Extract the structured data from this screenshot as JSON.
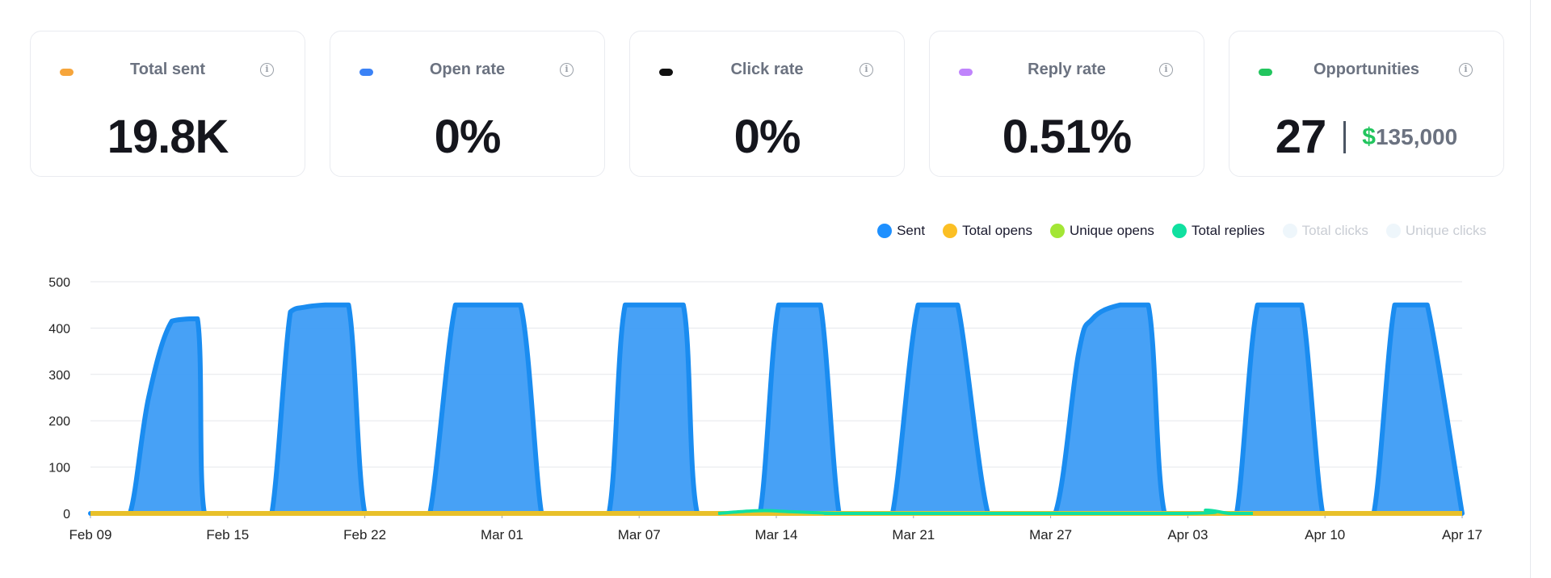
{
  "cards": [
    {
      "label": "Total sent",
      "value": "19.8K",
      "color": "#f6a53b"
    },
    {
      "label": "Open rate",
      "value": "0%",
      "color": "#3b82f6"
    },
    {
      "label": "Click rate",
      "value": "0%",
      "color": "#111111"
    },
    {
      "label": "Reply rate",
      "value": "0.51%",
      "color": "#c084fc"
    },
    {
      "label": "Opportunities",
      "value": "27",
      "money_symbol": "$",
      "money_amount": "135,000",
      "color": "#22c55e"
    }
  ],
  "chart_data": {
    "type": "area",
    "legend_position": "top-right",
    "grid": true,
    "ylim": [
      0,
      500
    ],
    "yticks": [
      "0",
      "100",
      "200",
      "300",
      "400",
      "500"
    ],
    "xticks": [
      "Feb 09",
      "Feb 15",
      "Feb 22",
      "Mar 01",
      "Mar 07",
      "Mar 14",
      "Mar 21",
      "Mar 27",
      "Apr 03",
      "Apr 10",
      "Apr 17"
    ],
    "legend": [
      {
        "name": "Sent",
        "color": "#1e90ff",
        "active": true
      },
      {
        "name": "Total opens",
        "color": "#fbbf24",
        "active": true
      },
      {
        "name": "Unique opens",
        "color": "#a3e635",
        "active": true
      },
      {
        "name": "Total replies",
        "color": "#10e0a0",
        "active": true
      },
      {
        "name": "Total clicks",
        "color": "#eef6fb",
        "active": false
      },
      {
        "name": "Unique clicks",
        "color": "#eef6fb",
        "active": false
      }
    ],
    "series": [
      {
        "name": "Sent",
        "color": "#1e90ff",
        "x": [
          0,
          0.9,
          1.7,
          2.5,
          3.5,
          4.6,
          4.9,
          6.1,
          7.1,
          7.8,
          8.6,
          9.2,
          10.1,
          11.1,
          11.8,
          12.9,
          13.9,
          14.6,
          15.7,
          16.6,
          17.2,
          18.5,
          19.4,
          20,
          21.2,
          22.3,
          23,
          24.2,
          25.5,
          26.1,
          27.6,
          28,
          28.8,
          29.6,
          30.6,
          31.4,
          32.2,
          32.9,
          33.8,
          34.5,
          35.6,
          36.6,
          37.3,
          38.6,
          39.6,
          40.2,
          41.5,
          42.5,
          43.1,
          44.3,
          45.5,
          46.2,
          47.6,
          48.6,
          49.3,
          50.2,
          51.3,
          52.1,
          53,
          53.7,
          54.4,
          55.2,
          56.1,
          56.9,
          57.5,
          59
        ],
        "y": [
          0,
          0,
          0,
          250,
          415,
          420,
          0,
          0,
          0,
          0,
          435,
          445,
          450,
          450,
          0,
          0,
          0,
          0,
          450,
          450,
          450,
          450,
          0,
          0,
          0,
          0,
          450,
          450,
          450,
          0,
          0,
          0,
          0,
          450,
          450,
          450,
          0,
          0,
          0,
          0,
          450,
          450,
          450,
          0,
          0,
          0,
          0,
          345,
          420,
          450,
          450,
          0,
          0,
          0,
          0,
          450,
          450,
          450,
          0,
          0,
          0,
          0,
          450,
          450,
          450,
          0
        ]
      },
      {
        "name": "Total opens",
        "color": "#e8c02a",
        "x": [
          0,
          59
        ],
        "y": [
          0,
          0
        ]
      },
      {
        "name": "Total replies",
        "color": "#10e0a0",
        "x": [
          27,
          28,
          29,
          30,
          31,
          32,
          33,
          47,
          48,
          49,
          50
        ],
        "y": [
          0,
          4,
          6,
          4,
          2,
          0,
          0,
          0,
          7,
          0,
          0
        ]
      }
    ]
  }
}
